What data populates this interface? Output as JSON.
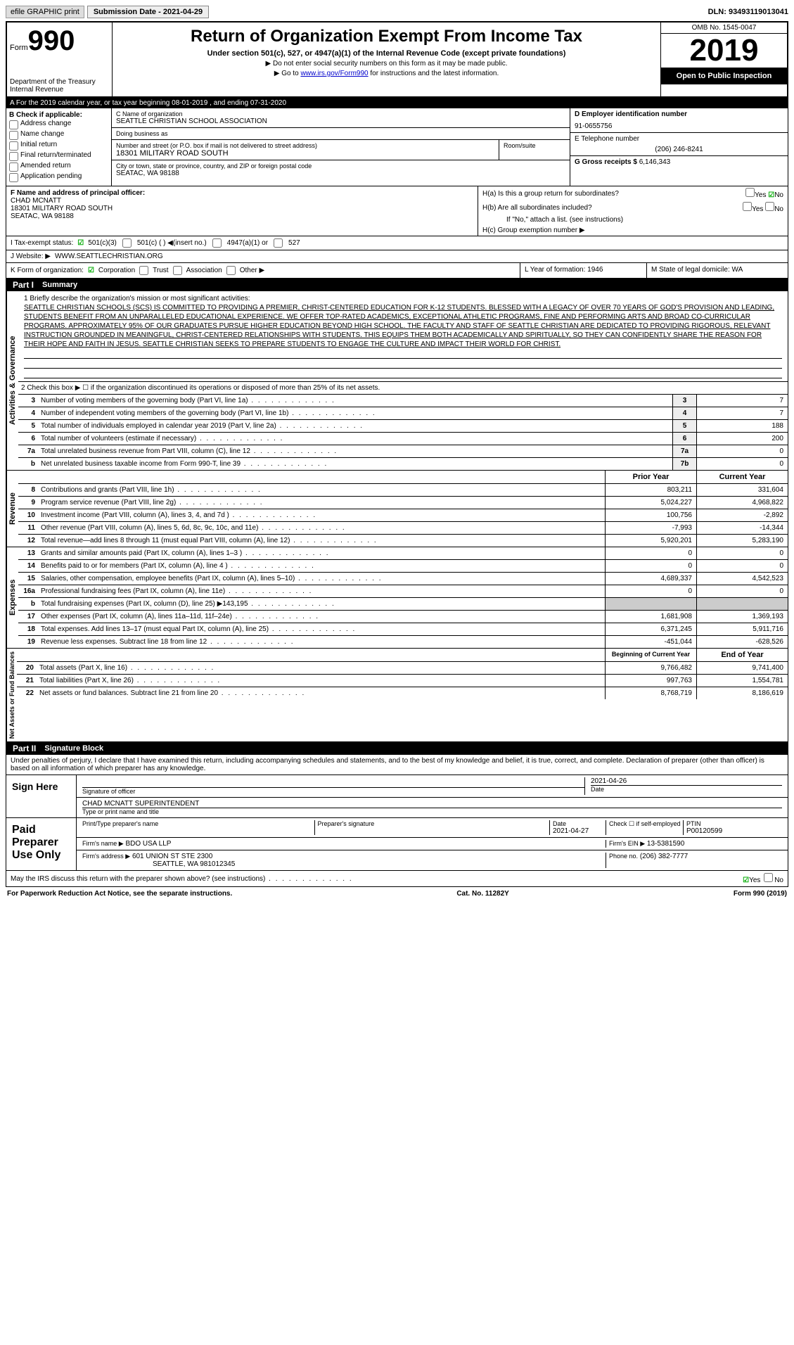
{
  "topbar": {
    "efile": "efile GRAPHIC print",
    "submission": "Submission Date - 2021-04-29",
    "dln": "DLN: 93493119013041"
  },
  "header": {
    "form_label": "Form",
    "form_num": "990",
    "dept": "Department of the Treasury\nInternal Revenue",
    "title": "Return of Organization Exempt From Income Tax",
    "subtitle": "Under section 501(c), 527, or 4947(a)(1) of the Internal Revenue Code (except private foundations)",
    "note1": "▶ Do not enter social security numbers on this form as it may be made public.",
    "note2_pre": "▶ Go to ",
    "note2_link": "www.irs.gov/Form990",
    "note2_post": " for instructions and the latest information.",
    "omb": "OMB No. 1545-0047",
    "year": "2019",
    "open": "Open to Public Inspection"
  },
  "taxyear": "A For the 2019 calendar year, or tax year beginning 08-01-2019   , and ending 07-31-2020",
  "checkB": {
    "title": "B Check if applicable:",
    "items": [
      "Address change",
      "Name change",
      "Initial return",
      "Final return/terminated",
      "Amended return",
      "Application pending"
    ]
  },
  "blockC": {
    "name_label": "C Name of organization",
    "name": "SEATTLE CHRISTIAN SCHOOL ASSOCIATION",
    "dba_label": "Doing business as",
    "dba": "",
    "street_label": "Number and street (or P.O. box if mail is not delivered to street address)",
    "street": "18301 MILITARY ROAD SOUTH",
    "room_label": "Room/suite",
    "city_label": "City or town, state or province, country, and ZIP or foreign postal code",
    "city": "SEATAC, WA  98188"
  },
  "blockD": {
    "label": "D Employer identification number",
    "val": "91-0655756"
  },
  "blockE": {
    "label": "E Telephone number",
    "val": "(206) 246-8241"
  },
  "blockG": {
    "label": "G Gross receipts $",
    "val": "6,146,343"
  },
  "blockF": {
    "label": "F  Name and address of principal officer:",
    "name": "CHAD MCNATT",
    "street": "18301 MILITARY ROAD SOUTH",
    "city": "SEATAC, WA  98188"
  },
  "blockH": {
    "ha": "H(a)  Is this a group return for subordinates?",
    "hb": "H(b)  Are all subordinates included?",
    "hnote": "If \"No,\" attach a list. (see instructions)",
    "hc": "H(c)  Group exemption number ▶"
  },
  "taxexempt": {
    "label": "I  Tax-exempt status:",
    "opts": [
      "501(c)(3)",
      "501(c) (  ) ◀(insert no.)",
      "4947(a)(1) or",
      "527"
    ]
  },
  "website": {
    "label": "J   Website: ▶",
    "val": "WWW.SEATTLECHRISTIAN.ORG"
  },
  "formK": {
    "label": "K Form of organization:",
    "opts": [
      "Corporation",
      "Trust",
      "Association",
      "Other ▶"
    ]
  },
  "blockL": {
    "label": "L Year of formation:",
    "val": "1946"
  },
  "blockM": {
    "label": "M State of legal domicile:",
    "val": "WA"
  },
  "part1": {
    "num": "Part I",
    "title": "Summary"
  },
  "mission": {
    "label": "1   Briefly describe the organization's mission or most significant activities:",
    "text": "SEATTLE CHRISTIAN SCHOOLS (SCS) IS COMMITTED TO PROVIDING A PREMIER, CHRIST-CENTERED EDUCATION FOR K-12 STUDENTS. BLESSED WITH A LEGACY OF OVER 70 YEARS OF GOD'S PROVISION AND LEADING, STUDENTS BENEFIT FROM AN UNPARALLELED EDUCATIONAL EXPERIENCE. WE OFFER TOP-RATED ACADEMICS, EXCEPTIONAL ATHLETIC PROGRAMS, FINE AND PERFORMING ARTS AND BROAD CO-CURRICULAR PROGRAMS. APPROXIMATELY 95% OF OUR GRADUATES PURSUE HIGHER EDUCATION BEYOND HIGH SCHOOL. THE FACULTY AND STAFF OF SEATTLE CHRISTIAN ARE DEDICATED TO PROVIDING RIGOROUS, RELEVANT INSTRUCTION GROUNDED IN MEANINGFUL, CHRIST-CENTERED RELATIONSHIPS WITH STUDENTS. THIS EQUIPS THEM BOTH ACADEMICALLY AND SPIRITUALLY, SO THEY CAN CONFIDENTLY SHARE THE REASON FOR THEIR HOPE AND FAITH IN JESUS. SEATTLE CHRISTIAN SEEKS TO PREPARE STUDENTS TO ENGAGE THE CULTURE AND IMPACT THEIR WORLD FOR CHRIST."
  },
  "line2": "2   Check this box ▶ ☐ if the organization discontinued its operations or disposed of more than 25% of its net assets.",
  "gov_lines": [
    {
      "n": "3",
      "t": "Number of voting members of the governing body (Part VI, line 1a)",
      "b": "3",
      "v": "7"
    },
    {
      "n": "4",
      "t": "Number of independent voting members of the governing body (Part VI, line 1b)",
      "b": "4",
      "v": "7"
    },
    {
      "n": "5",
      "t": "Total number of individuals employed in calendar year 2019 (Part V, line 2a)",
      "b": "5",
      "v": "188"
    },
    {
      "n": "6",
      "t": "Total number of volunteers (estimate if necessary)",
      "b": "6",
      "v": "200"
    },
    {
      "n": "7a",
      "t": "Total unrelated business revenue from Part VIII, column (C), line 12",
      "b": "7a",
      "v": "0"
    },
    {
      "n": "b",
      "t": "Net unrelated business taxable income from Form 990-T, line 39",
      "b": "7b",
      "v": "0"
    }
  ],
  "rev_hdr": {
    "prior": "Prior Year",
    "cur": "Current Year"
  },
  "rev_lines": [
    {
      "n": "8",
      "t": "Contributions and grants (Part VIII, line 1h)",
      "p": "803,211",
      "c": "331,604"
    },
    {
      "n": "9",
      "t": "Program service revenue (Part VIII, line 2g)",
      "p": "5,024,227",
      "c": "4,968,822"
    },
    {
      "n": "10",
      "t": "Investment income (Part VIII, column (A), lines 3, 4, and 7d )",
      "p": "100,756",
      "c": "-2,892"
    },
    {
      "n": "11",
      "t": "Other revenue (Part VIII, column (A), lines 5, 6d, 8c, 9c, 10c, and 11e)",
      "p": "-7,993",
      "c": "-14,344"
    },
    {
      "n": "12",
      "t": "Total revenue—add lines 8 through 11 (must equal Part VIII, column (A), line 12)",
      "p": "5,920,201",
      "c": "5,283,190"
    }
  ],
  "exp_lines": [
    {
      "n": "13",
      "t": "Grants and similar amounts paid (Part IX, column (A), lines 1–3 )",
      "p": "0",
      "c": "0"
    },
    {
      "n": "14",
      "t": "Benefits paid to or for members (Part IX, column (A), line 4 )",
      "p": "0",
      "c": "0"
    },
    {
      "n": "15",
      "t": "Salaries, other compensation, employee benefits (Part IX, column (A), lines 5–10)",
      "p": "4,689,337",
      "c": "4,542,523"
    },
    {
      "n": "16a",
      "t": "Professional fundraising fees (Part IX, column (A), line 11e)",
      "p": "0",
      "c": "0"
    },
    {
      "n": "b",
      "t": "Total fundraising expenses (Part IX, column (D), line 25) ▶143,195",
      "p": "",
      "c": ""
    },
    {
      "n": "17",
      "t": "Other expenses (Part IX, column (A), lines 11a–11d, 11f–24e)",
      "p": "1,681,908",
      "c": "1,369,193"
    },
    {
      "n": "18",
      "t": "Total expenses. Add lines 13–17 (must equal Part IX, column (A), line 25)",
      "p": "6,371,245",
      "c": "5,911,716"
    },
    {
      "n": "19",
      "t": "Revenue less expenses. Subtract line 18 from line 12",
      "p": "-451,044",
      "c": "-628,526"
    }
  ],
  "na_hdr": {
    "beg": "Beginning of Current Year",
    "end": "End of Year"
  },
  "na_lines": [
    {
      "n": "20",
      "t": "Total assets (Part X, line 16)",
      "p": "9,766,482",
      "c": "9,741,400"
    },
    {
      "n": "21",
      "t": "Total liabilities (Part X, line 26)",
      "p": "997,763",
      "c": "1,554,781"
    },
    {
      "n": "22",
      "t": "Net assets or fund balances. Subtract line 21 from line 20",
      "p": "8,768,719",
      "c": "8,186,619"
    }
  ],
  "part2": {
    "num": "Part II",
    "title": "Signature Block"
  },
  "perjury": "Under penalties of perjury, I declare that I have examined this return, including accompanying schedules and statements, and to the best of my knowledge and belief, it is true, correct, and complete. Declaration of preparer (other than officer) is based on all information of which preparer has any knowledge.",
  "sign": {
    "left": "Sign Here",
    "sig_of": "Signature of officer",
    "date": "2021-04-26",
    "date_lbl": "Date",
    "name": "CHAD MCNATT  SUPERINTENDENT",
    "name_lbl": "Type or print name and title"
  },
  "paid": {
    "left": "Paid Preparer Use Only",
    "prep_name_lbl": "Print/Type preparer's name",
    "prep_sig_lbl": "Preparer's signature",
    "date_lbl": "Date",
    "date": "2021-04-27",
    "check_lbl": "Check ☐ if self-employed",
    "ptin_lbl": "PTIN",
    "ptin": "P00120599",
    "firm_name_lbl": "Firm's name   ▶",
    "firm_name": "BDO USA LLP",
    "firm_ein_lbl": "Firm's EIN ▶",
    "firm_ein": "13-5381590",
    "firm_addr_lbl": "Firm's address ▶",
    "firm_addr": "601 UNION ST STE 2300",
    "firm_city": "SEATTLE, WA  981012345",
    "phone_lbl": "Phone no.",
    "phone": "(206) 382-7777"
  },
  "discuss": "May the IRS discuss this return with the preparer shown above? (see instructions)",
  "footer": {
    "left": "For Paperwork Reduction Act Notice, see the separate instructions.",
    "mid": "Cat. No. 11282Y",
    "right": "Form 990 (2019)"
  },
  "vert": {
    "gov": "Activities & Governance",
    "rev": "Revenue",
    "exp": "Expenses",
    "na": "Net Assets or Fund Balances"
  },
  "yn": {
    "yes": "Yes",
    "no": "No"
  }
}
